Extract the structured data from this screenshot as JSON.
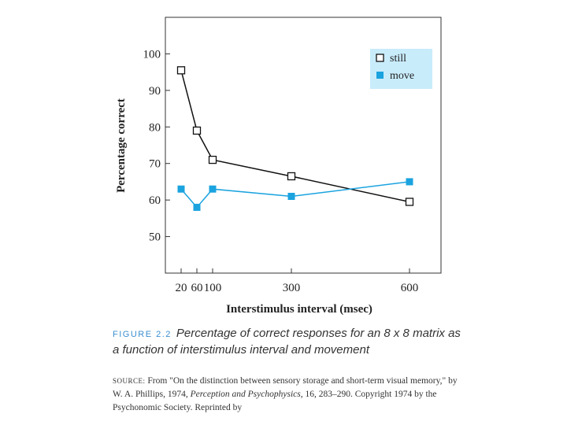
{
  "chart_data": {
    "type": "line",
    "title": "",
    "xlabel": "Interstimulus interval (msec)",
    "ylabel": "Percentage correct",
    "xlim": [
      -20,
      680
    ],
    "ylim": [
      40,
      110
    ],
    "x_ticks": [
      20,
      60,
      100,
      300,
      600
    ],
    "x_tick_labels": [
      "20",
      "60",
      "100",
      "300",
      "600"
    ],
    "y_ticks": [
      50,
      60,
      70,
      80,
      90,
      100
    ],
    "x": [
      20,
      60,
      100,
      300,
      600
    ],
    "series": [
      {
        "name": "still",
        "values": [
          95.5,
          79,
          71,
          66.5,
          59.5
        ],
        "color": "#111111",
        "marker": "open-square"
      },
      {
        "name": "move",
        "values": [
          63,
          58,
          63,
          61,
          65
        ],
        "color": "#1aa3df",
        "marker": "filled-square"
      }
    ],
    "legend_position": "top-right",
    "grid": false
  },
  "caption": {
    "figure_label": "FIGURE 2.2",
    "text": "Percentage of correct responses for an 8 x 8 matrix as a function of interstimulus interval and movement"
  },
  "source": {
    "label": "SOURCE:",
    "text_1": "From \"On the distinction between sensory storage and short-term visual memory,\" by W. A. Phillips, 1974, ",
    "journal": "Perception and Psychophysics",
    "text_2": ", 16, 283–290. Copyright 1974 by the Psychonomic Society. Reprinted by"
  },
  "colors": {
    "legend_bg": "#c9ecfb",
    "move": "#1aa3df",
    "still": "#111111"
  }
}
